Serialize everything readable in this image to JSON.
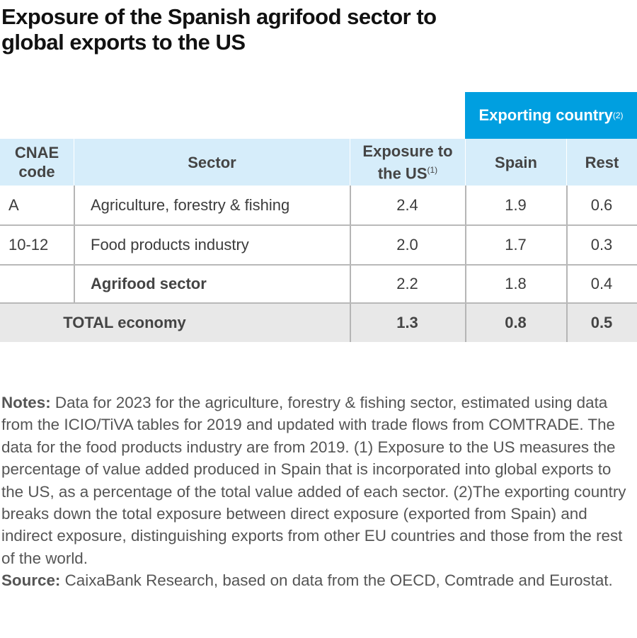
{
  "title": "Exposure of the Spanish agrifood sector to global exports to the US",
  "table": {
    "group_header": {
      "label": "Exporting country",
      "sup": "(2)"
    },
    "headers": {
      "code": "CNAE code",
      "sector": "Sector",
      "exposure": "Exposure to the US",
      "exposure_sup": "(1)",
      "spain": "Spain",
      "rest": "Rest"
    },
    "rows": [
      {
        "code": "A",
        "sector": "Agriculture, forestry & fishing",
        "exposure": "2.4",
        "spain": "1.9",
        "rest": "0.6"
      },
      {
        "code": "10-12",
        "sector": "Food products industry",
        "exposure": "2.0",
        "spain": "1.7",
        "rest": "0.3"
      },
      {
        "code": "",
        "sector": "Agrifood sector",
        "exposure": "2.2",
        "spain": "1.8",
        "rest": "0.4"
      }
    ],
    "total": {
      "sector": "TOTAL economy",
      "exposure": "1.3",
      "spain": "0.8",
      "rest": "0.5"
    }
  },
  "colors": {
    "accent": "#009fe0",
    "header_bg": "#d6edfa",
    "total_bg": "#e8e8e8"
  },
  "notes": {
    "notes_label": "Notes:",
    "notes_text": " Data for 2023 for the agriculture, forestry & fishing sector, estimated using data from the ICIO/TiVA tables for 2019 and updated with trade flows from COMTRADE. The data for the food products industry are from 2019. (1) Exposure to the US measures the percentage of value added produced in Spain that is incorporated into global exports to the US, as a percentage of the total value added of each sector. (2)The exporting country breaks down the total exposure between direct exposure (exported from Spain) and indirect exposure, distinguishing exports from other EU countries and those from the rest of the world.",
    "source_label": "Source:",
    "source_text": " CaixaBank Research, based on data from the OECD, Comtrade and Eurostat."
  }
}
